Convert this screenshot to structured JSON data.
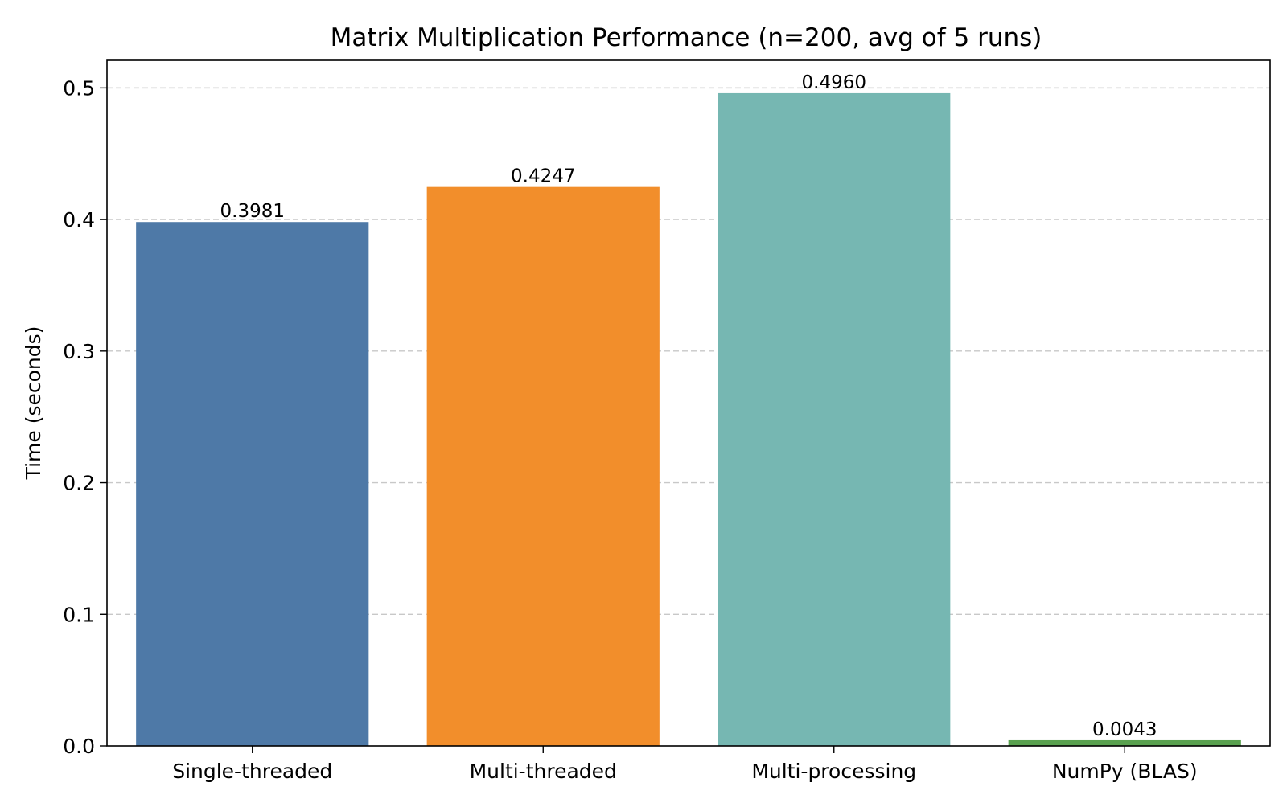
{
  "chart_data": {
    "type": "bar",
    "title": "Matrix Multiplication Performance (n=200, avg of 5 runs)",
    "xlabel": "",
    "ylabel": "Time (seconds)",
    "categories": [
      "Single-threaded",
      "Multi-threaded",
      "Multi-processing",
      "NumPy (BLAS)"
    ],
    "values": [
      0.3981,
      0.4247,
      0.496,
      0.0043
    ],
    "value_labels": [
      "0.3981",
      "0.4247",
      "0.4960",
      "0.0043"
    ],
    "colors": [
      "#4e79a7",
      "#f28e2b",
      "#76b7b2",
      "#59a14f"
    ],
    "ylim": [
      0,
      0.521
    ],
    "yticks": [
      0.0,
      0.1,
      0.2,
      0.3,
      0.4,
      0.5
    ],
    "ytick_labels": [
      "0.0",
      "0.1",
      "0.2",
      "0.3",
      "0.4",
      "0.5"
    ],
    "grid": {
      "axis": "y",
      "style": "dashed",
      "color": "#c8c8c8"
    },
    "legend": "none"
  }
}
